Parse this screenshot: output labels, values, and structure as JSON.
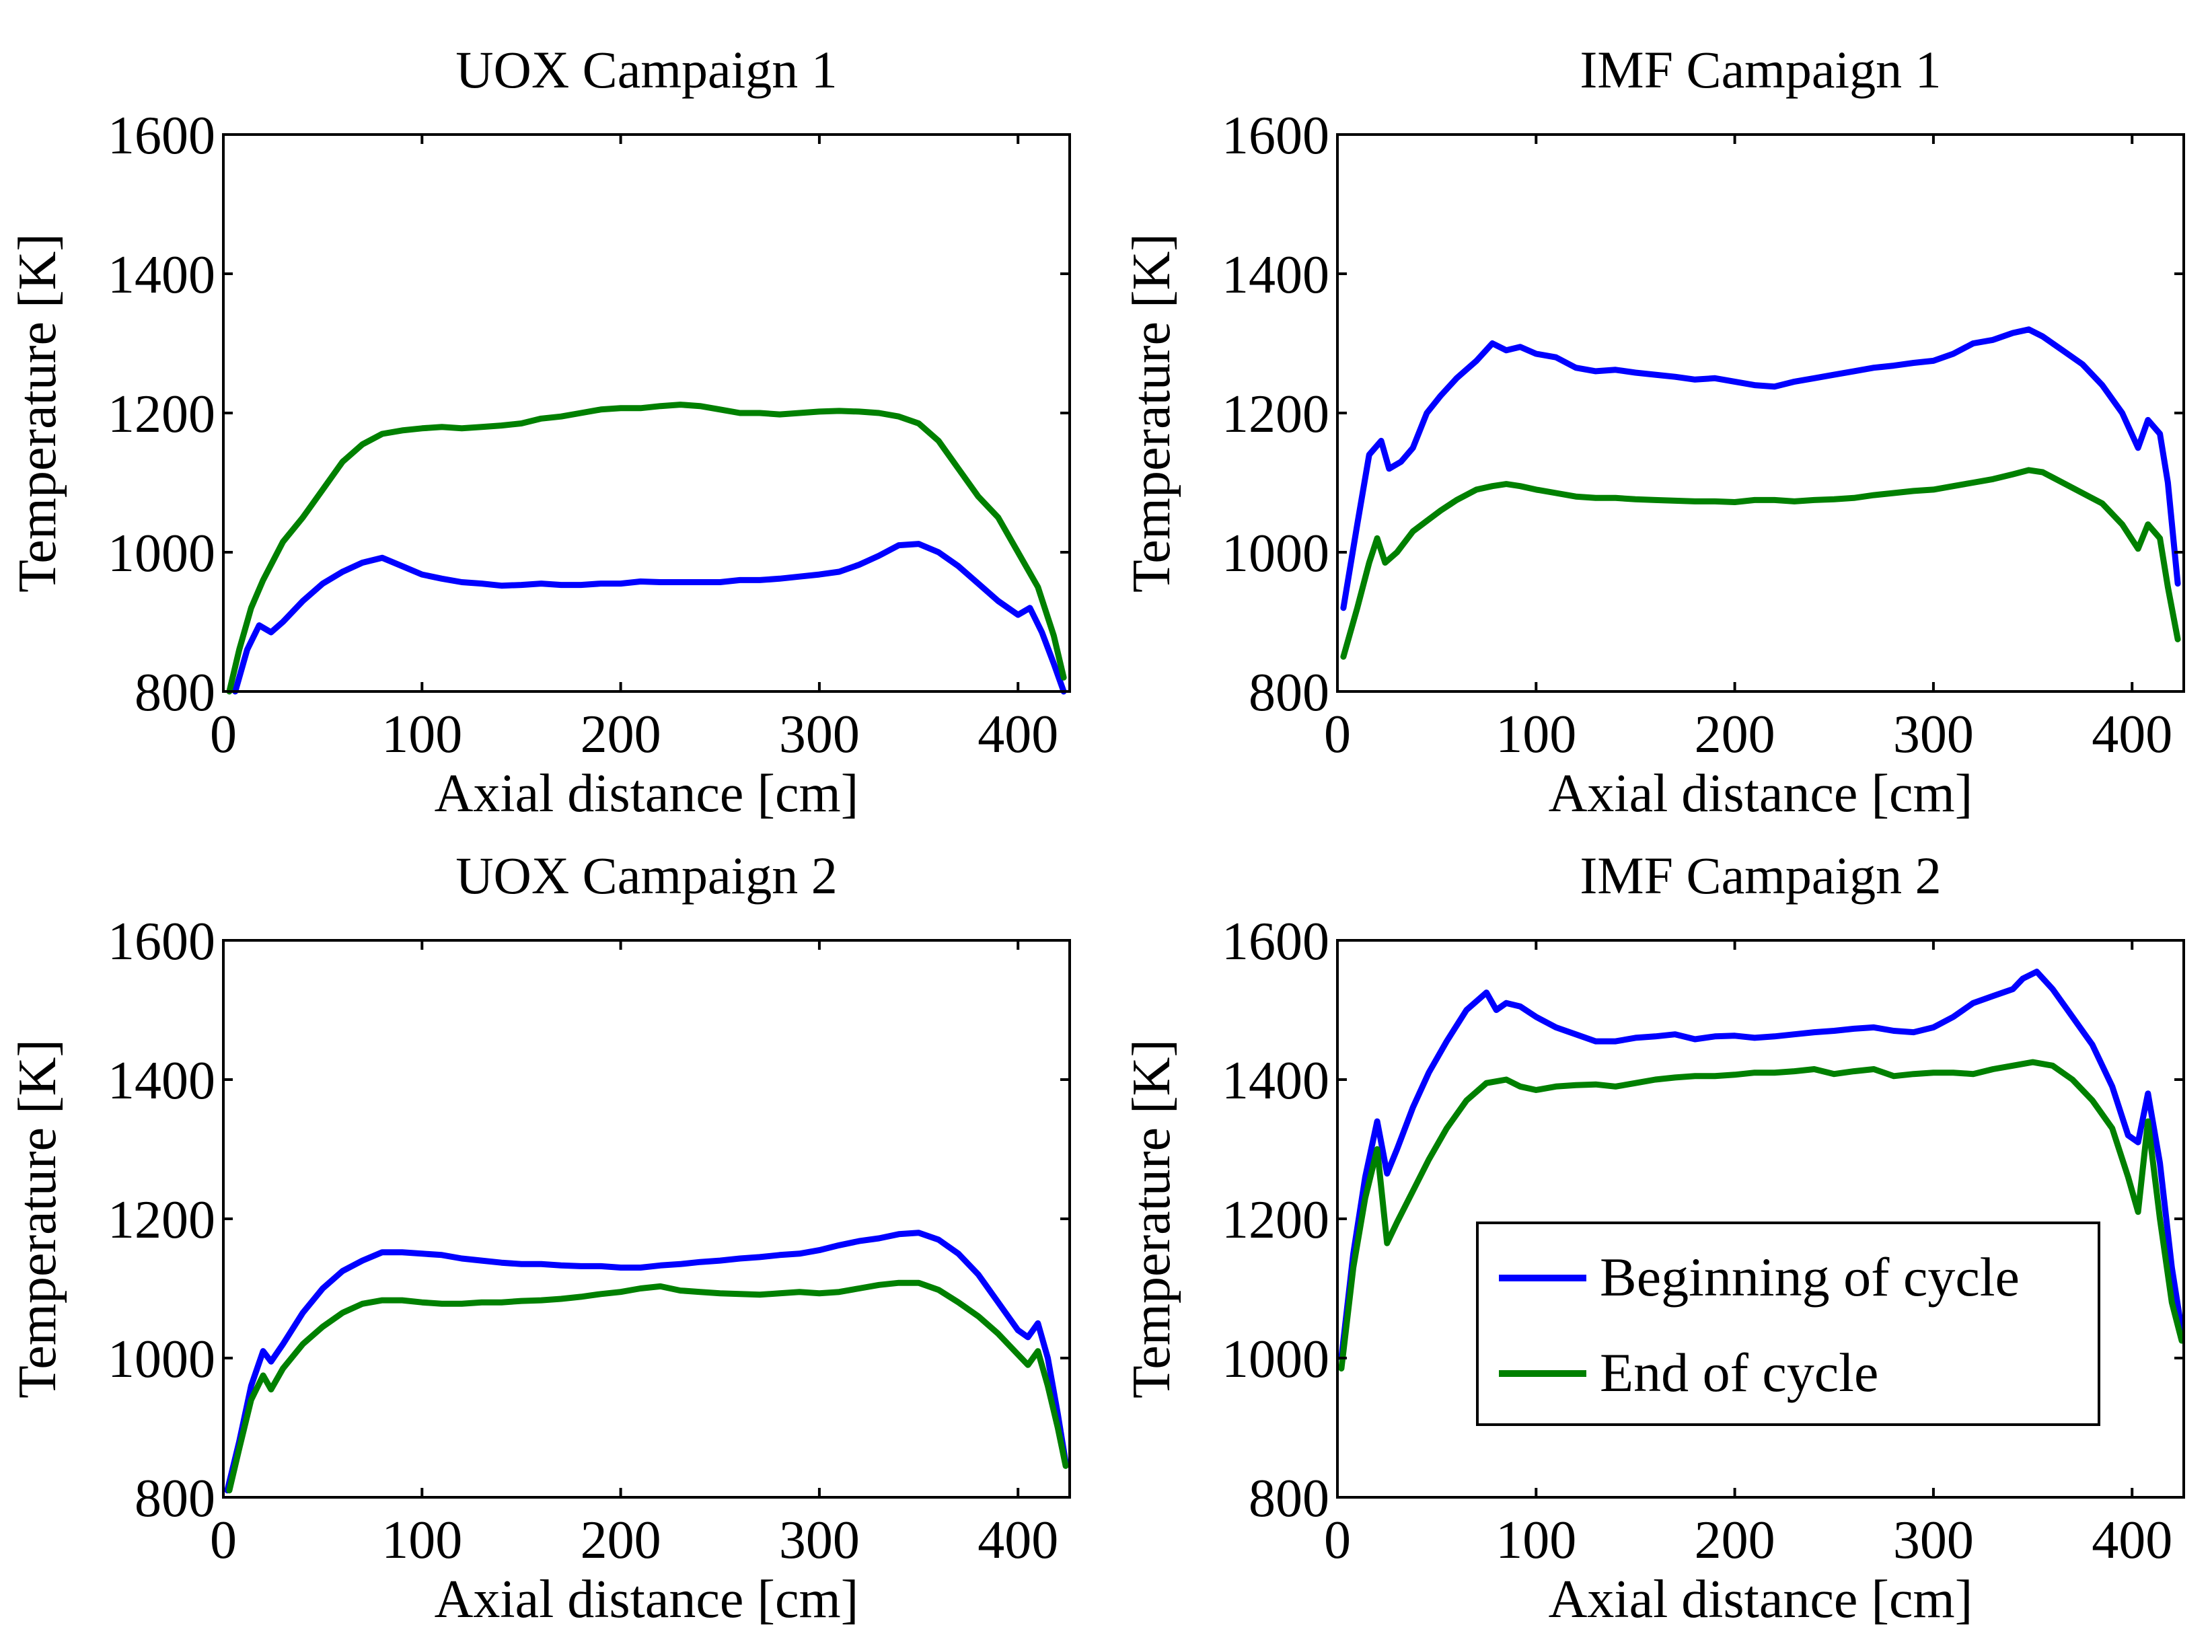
{
  "chart_data": [
    {
      "type": "line",
      "title": "UOX Campaign 1",
      "xlabel": "Axial distance [cm]",
      "ylabel": "Temperature [K]",
      "xlim": [
        0,
        426
      ],
      "ylim": [
        800,
        1600
      ],
      "xticks": [
        0,
        100,
        200,
        300,
        400
      ],
      "yticks": [
        800,
        1000,
        1200,
        1400,
        1600
      ],
      "series": [
        {
          "name": "Beginning of cycle",
          "color": "#0000ff",
          "x": [
            6,
            12,
            18,
            24,
            30,
            40,
            50,
            60,
            70,
            80,
            90,
            100,
            110,
            120,
            130,
            140,
            150,
            160,
            170,
            180,
            190,
            200,
            210,
            220,
            230,
            240,
            250,
            260,
            270,
            280,
            290,
            300,
            310,
            320,
            330,
            340,
            350,
            360,
            370,
            380,
            390,
            400,
            406,
            412,
            418,
            423
          ],
          "values": [
            800,
            860,
            895,
            885,
            900,
            930,
            955,
            972,
            985,
            992,
            980,
            968,
            962,
            957,
            955,
            952,
            953,
            955,
            953,
            953,
            955,
            955,
            958,
            957,
            957,
            957,
            957,
            960,
            960,
            962,
            965,
            968,
            972,
            982,
            995,
            1010,
            1012,
            1000,
            980,
            955,
            930,
            910,
            920,
            885,
            840,
            800
          ]
        },
        {
          "name": "End of cycle",
          "color": "#008000",
          "x": [
            3,
            8,
            14,
            20,
            30,
            40,
            50,
            60,
            70,
            80,
            90,
            100,
            110,
            120,
            130,
            140,
            150,
            160,
            170,
            180,
            190,
            200,
            210,
            220,
            230,
            240,
            250,
            260,
            270,
            280,
            290,
            300,
            310,
            320,
            330,
            340,
            350,
            360,
            370,
            380,
            390,
            400,
            410,
            418,
            423
          ],
          "values": [
            800,
            860,
            920,
            960,
            1015,
            1050,
            1090,
            1130,
            1155,
            1170,
            1175,
            1178,
            1180,
            1178,
            1180,
            1182,
            1185,
            1192,
            1195,
            1200,
            1205,
            1207,
            1207,
            1210,
            1212,
            1210,
            1205,
            1200,
            1200,
            1198,
            1200,
            1202,
            1203,
            1202,
            1200,
            1195,
            1185,
            1160,
            1120,
            1080,
            1050,
            1000,
            950,
            880,
            820
          ]
        }
      ]
    },
    {
      "type": "line",
      "title": "IMF Campaign 1",
      "xlabel": "Axial distance [cm]",
      "ylabel": "Temperature [K]",
      "xlim": [
        0,
        426
      ],
      "ylim": [
        800,
        1600
      ],
      "xticks": [
        0,
        100,
        200,
        300,
        400
      ],
      "yticks": [
        800,
        1000,
        1200,
        1400,
        1600
      ],
      "series": [
        {
          "name": "Beginning of cycle",
          "color": "#0000ff",
          "x": [
            3,
            10,
            16,
            22,
            26,
            32,
            38,
            45,
            52,
            60,
            70,
            78,
            85,
            92,
            100,
            110,
            120,
            130,
            140,
            150,
            160,
            170,
            180,
            190,
            200,
            210,
            220,
            230,
            240,
            250,
            260,
            270,
            280,
            290,
            300,
            310,
            320,
            330,
            340,
            348,
            355,
            365,
            375,
            385,
            395,
            403,
            408,
            414,
            418,
            423
          ],
          "values": [
            920,
            1040,
            1140,
            1160,
            1120,
            1130,
            1150,
            1200,
            1225,
            1250,
            1275,
            1300,
            1290,
            1295,
            1285,
            1280,
            1265,
            1260,
            1262,
            1258,
            1255,
            1252,
            1248,
            1250,
            1245,
            1240,
            1238,
            1245,
            1250,
            1255,
            1260,
            1265,
            1268,
            1272,
            1275,
            1285,
            1300,
            1305,
            1315,
            1320,
            1310,
            1290,
            1270,
            1240,
            1200,
            1150,
            1190,
            1170,
            1100,
            955
          ]
        },
        {
          "name": "End of cycle",
          "color": "#008000",
          "x": [
            3,
            10,
            16,
            20,
            24,
            30,
            38,
            45,
            52,
            60,
            70,
            78,
            85,
            92,
            100,
            110,
            120,
            130,
            140,
            150,
            160,
            170,
            180,
            190,
            200,
            210,
            220,
            230,
            240,
            250,
            260,
            270,
            280,
            290,
            300,
            310,
            320,
            330,
            340,
            348,
            355,
            365,
            375,
            385,
            395,
            403,
            408,
            414,
            418,
            423
          ],
          "values": [
            850,
            920,
            985,
            1020,
            985,
            1000,
            1030,
            1045,
            1060,
            1075,
            1090,
            1095,
            1098,
            1095,
            1090,
            1085,
            1080,
            1078,
            1078,
            1076,
            1075,
            1074,
            1073,
            1073,
            1072,
            1075,
            1075,
            1073,
            1075,
            1076,
            1078,
            1082,
            1085,
            1088,
            1090,
            1095,
            1100,
            1105,
            1112,
            1118,
            1115,
            1100,
            1085,
            1070,
            1040,
            1005,
            1040,
            1020,
            950,
            875
          ]
        }
      ]
    },
    {
      "type": "line",
      "title": "UOX Campaign 2",
      "xlabel": "Axial distance [cm]",
      "ylabel": "Temperature [K]",
      "xlim": [
        0,
        426
      ],
      "ylim": [
        800,
        1600
      ],
      "xticks": [
        0,
        100,
        200,
        300,
        400
      ],
      "yticks": [
        800,
        1000,
        1200,
        1400,
        1600
      ],
      "series": [
        {
          "name": "Beginning of cycle",
          "color": "#0000ff",
          "x": [
            2,
            8,
            14,
            20,
            24,
            30,
            40,
            50,
            60,
            70,
            80,
            90,
            100,
            110,
            120,
            130,
            140,
            150,
            160,
            170,
            180,
            190,
            200,
            210,
            220,
            230,
            240,
            250,
            260,
            270,
            280,
            290,
            300,
            310,
            320,
            330,
            340,
            350,
            360,
            370,
            380,
            390,
            400,
            405,
            410,
            415,
            420,
            424
          ],
          "values": [
            810,
            880,
            960,
            1010,
            995,
            1020,
            1065,
            1100,
            1125,
            1140,
            1152,
            1152,
            1150,
            1148,
            1143,
            1140,
            1137,
            1135,
            1135,
            1133,
            1132,
            1132,
            1130,
            1130,
            1133,
            1135,
            1138,
            1140,
            1143,
            1145,
            1148,
            1150,
            1155,
            1162,
            1168,
            1172,
            1178,
            1180,
            1170,
            1150,
            1120,
            1080,
            1040,
            1030,
            1050,
            1000,
            920,
            850
          ]
        },
        {
          "name": "End of cycle",
          "color": "#008000",
          "x": [
            3,
            8,
            14,
            20,
            24,
            30,
            40,
            50,
            60,
            70,
            80,
            90,
            100,
            110,
            120,
            130,
            140,
            150,
            160,
            170,
            180,
            190,
            200,
            210,
            220,
            230,
            240,
            250,
            260,
            270,
            280,
            290,
            300,
            310,
            320,
            330,
            340,
            350,
            360,
            370,
            380,
            390,
            400,
            405,
            410,
            415,
            420,
            424
          ],
          "values": [
            810,
            870,
            940,
            975,
            955,
            985,
            1020,
            1045,
            1065,
            1078,
            1083,
            1083,
            1080,
            1078,
            1078,
            1080,
            1080,
            1082,
            1083,
            1085,
            1088,
            1092,
            1095,
            1100,
            1103,
            1097,
            1095,
            1093,
            1092,
            1091,
            1093,
            1095,
            1093,
            1095,
            1100,
            1105,
            1108,
            1108,
            1098,
            1080,
            1060,
            1035,
            1005,
            990,
            1010,
            960,
            900,
            845
          ]
        }
      ]
    },
    {
      "type": "line",
      "title": "IMF Campaign 2",
      "xlabel": "Axial distance [cm]",
      "ylabel": "Temperature [K]",
      "xlim": [
        0,
        426
      ],
      "ylim": [
        800,
        1600
      ],
      "xticks": [
        0,
        100,
        200,
        300,
        400
      ],
      "yticks": [
        800,
        1000,
        1200,
        1400,
        1600
      ],
      "legend": {
        "position": "lower-right",
        "entries": [
          "Beginning of cycle",
          "End of cycle"
        ]
      },
      "series": [
        {
          "name": "Beginning of cycle",
          "color": "#0000ff",
          "x": [
            2,
            8,
            14,
            20,
            25,
            30,
            38,
            46,
            55,
            65,
            75,
            80,
            85,
            92,
            100,
            110,
            120,
            130,
            140,
            150,
            160,
            170,
            180,
            190,
            200,
            210,
            220,
            230,
            240,
            250,
            260,
            270,
            280,
            290,
            300,
            310,
            320,
            330,
            340,
            345,
            352,
            360,
            370,
            380,
            390,
            398,
            403,
            408,
            414,
            420,
            425
          ],
          "values": [
            1000,
            1150,
            1260,
            1340,
            1265,
            1300,
            1360,
            1410,
            1455,
            1500,
            1525,
            1500,
            1510,
            1505,
            1490,
            1475,
            1465,
            1455,
            1455,
            1460,
            1462,
            1465,
            1458,
            1462,
            1463,
            1460,
            1462,
            1465,
            1468,
            1470,
            1473,
            1475,
            1470,
            1468,
            1475,
            1490,
            1510,
            1520,
            1530,
            1545,
            1555,
            1530,
            1490,
            1450,
            1390,
            1320,
            1310,
            1380,
            1280,
            1130,
            1040
          ]
        },
        {
          "name": "End of cycle",
          "color": "#008000",
          "x": [
            2,
            8,
            14,
            20,
            25,
            30,
            38,
            46,
            55,
            65,
            75,
            85,
            92,
            100,
            110,
            120,
            130,
            140,
            150,
            160,
            170,
            180,
            190,
            200,
            210,
            220,
            230,
            240,
            250,
            260,
            270,
            280,
            290,
            300,
            310,
            320,
            330,
            340,
            350,
            360,
            370,
            380,
            390,
            398,
            403,
            408,
            414,
            420,
            425
          ],
          "values": [
            985,
            1130,
            1230,
            1300,
            1165,
            1195,
            1240,
            1285,
            1330,
            1370,
            1395,
            1400,
            1390,
            1385,
            1390,
            1392,
            1393,
            1390,
            1395,
            1400,
            1403,
            1405,
            1405,
            1407,
            1410,
            1410,
            1412,
            1415,
            1408,
            1412,
            1415,
            1405,
            1408,
            1410,
            1410,
            1408,
            1415,
            1420,
            1425,
            1420,
            1400,
            1370,
            1330,
            1260,
            1210,
            1340,
            1200,
            1080,
            1025
          ]
        }
      ]
    }
  ]
}
